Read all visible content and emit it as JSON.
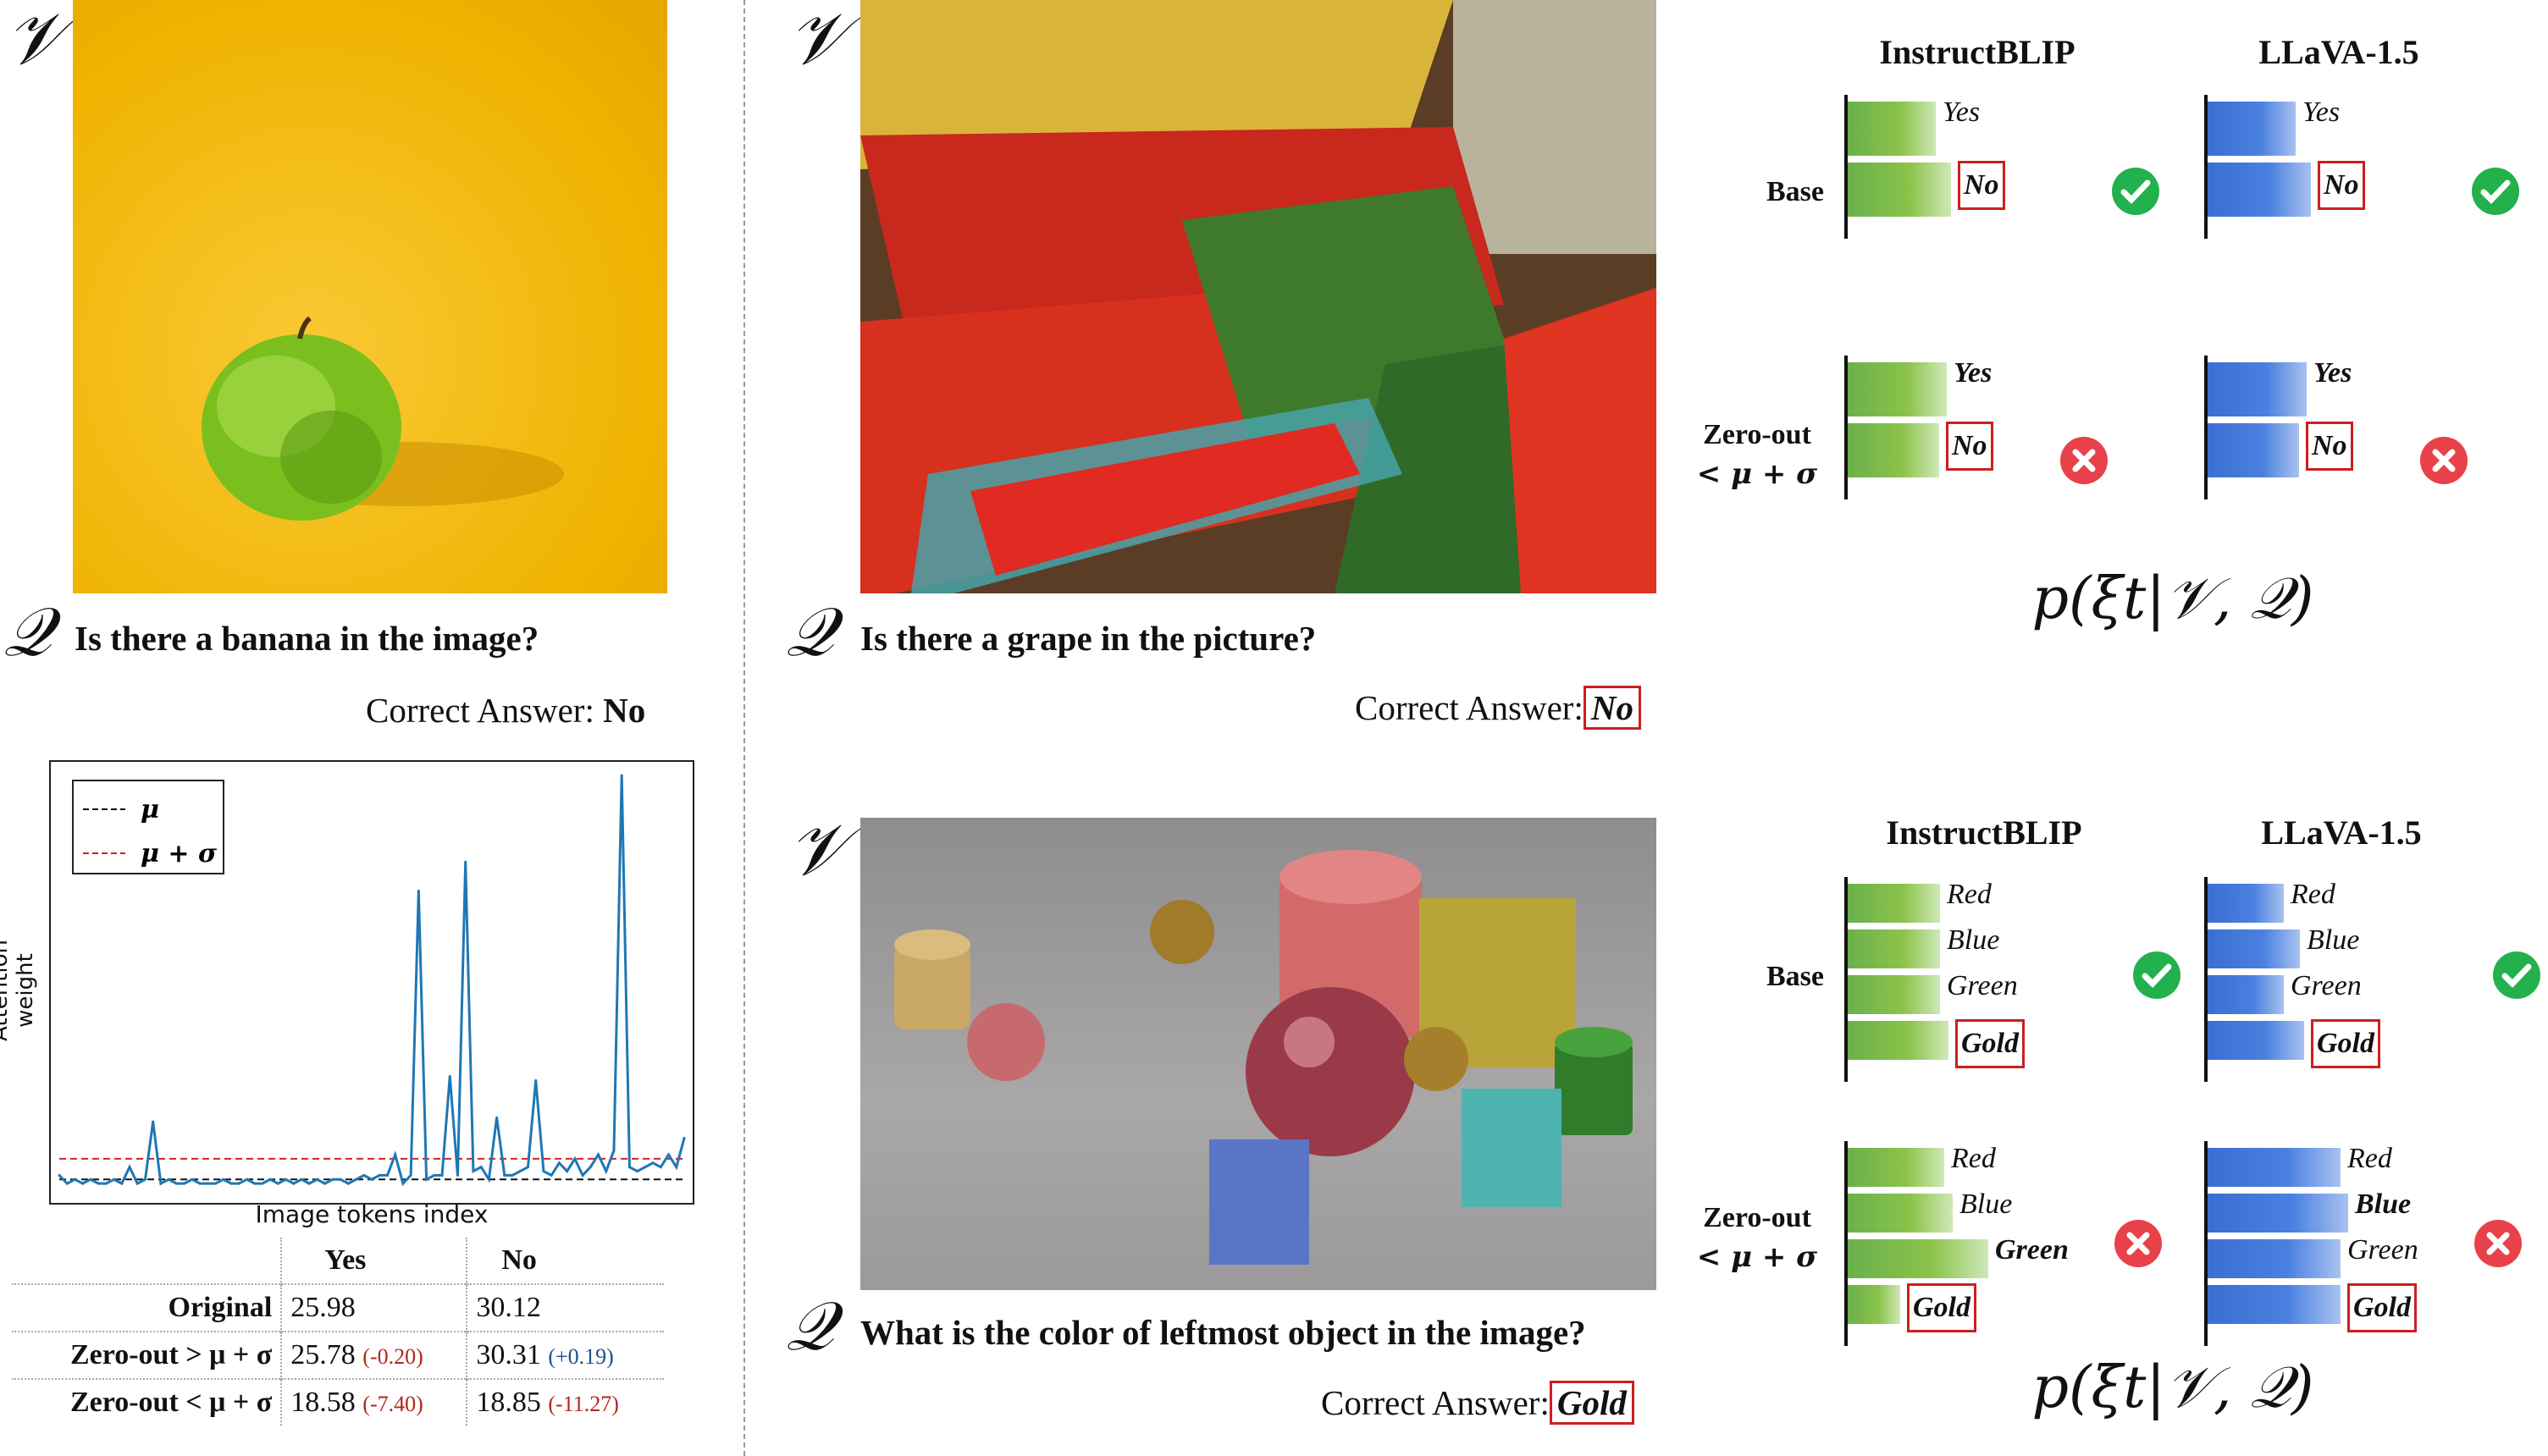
{
  "symbols": {
    "visual": "𝒱",
    "question": "𝒬"
  },
  "example1": {
    "question": "Is there a banana in the image?",
    "answer_label": "Correct Answer:",
    "answer_value": "No"
  },
  "example2": {
    "question": "Is there a grape in the picture?",
    "answer_label": "Correct Answer:",
    "answer_value": "No"
  },
  "example3": {
    "question": "What is the color of leftmost object in the image?",
    "answer_label": "Correct Answer:",
    "answer_value": "Gold"
  },
  "chart_data": {
    "type": "line",
    "xlabel": "Image tokens index",
    "ylabel": "Attention weight",
    "legend": [
      "μ",
      "μ + σ"
    ],
    "legend_placement": "top-left",
    "mu": 0.02,
    "mu_plus_sigma": 0.07,
    "ylim": [
      0,
      1
    ],
    "x": [
      0,
      5,
      10,
      15,
      20,
      25,
      30,
      35,
      40,
      45,
      50,
      55,
      60,
      65,
      70,
      75,
      80,
      85,
      90,
      95,
      100,
      105,
      110,
      115,
      120,
      125,
      130,
      135,
      140,
      145,
      150,
      155,
      160,
      165,
      170,
      175,
      180,
      185,
      190,
      195,
      200,
      205,
      210,
      215,
      220,
      225,
      230,
      235,
      240,
      245,
      250,
      255,
      260,
      265,
      270,
      275,
      280,
      285,
      290,
      295,
      300,
      305,
      310,
      315,
      320,
      325,
      330,
      335,
      340,
      345,
      350,
      355,
      360,
      365,
      370,
      375,
      380,
      385,
      390,
      395,
      400
    ],
    "values": [
      0.03,
      0.01,
      0.02,
      0.01,
      0.02,
      0.01,
      0.01,
      0.02,
      0.01,
      0.05,
      0.01,
      0.02,
      0.16,
      0.01,
      0.02,
      0.01,
      0.01,
      0.02,
      0.01,
      0.01,
      0.01,
      0.02,
      0.01,
      0.01,
      0.02,
      0.01,
      0.01,
      0.02,
      0.01,
      0.02,
      0.01,
      0.02,
      0.01,
      0.02,
      0.01,
      0.02,
      0.02,
      0.01,
      0.02,
      0.03,
      0.02,
      0.03,
      0.03,
      0.08,
      0.01,
      0.03,
      0.72,
      0.02,
      0.03,
      0.03,
      0.27,
      0.03,
      0.79,
      0.04,
      0.05,
      0.02,
      0.17,
      0.03,
      0.03,
      0.04,
      0.05,
      0.26,
      0.04,
      0.03,
      0.06,
      0.04,
      0.07,
      0.03,
      0.05,
      0.08,
      0.04,
      0.09,
      1.0,
      0.05,
      0.04,
      0.05,
      0.06,
      0.05,
      0.08,
      0.05,
      0.12
    ]
  },
  "table": {
    "headers": [
      "",
      "Yes",
      "No"
    ],
    "rows": [
      {
        "label": "Original",
        "yes": "25.98",
        "yes_delta": "",
        "no": "30.12",
        "no_delta": ""
      },
      {
        "label": "Zero-out > μ + σ",
        "yes": "25.78",
        "yes_delta": "(-0.20)",
        "no": "30.31",
        "no_delta": "(+0.19)"
      },
      {
        "label": "Zero-out < μ + σ",
        "yes": "18.58",
        "yes_delta": "(-7.40)",
        "no": "18.85",
        "no_delta": "(-11.27)"
      }
    ]
  },
  "panel_top": {
    "models": [
      "InstructBLIP",
      "LLaVA-1.5"
    ],
    "row_labels": [
      "Base",
      "Zero-out",
      "< μ + σ"
    ],
    "formula": "p(ξt|𝒱, 𝒬)",
    "base": {
      "instructblip": [
        {
          "label": "Yes",
          "value": 0.46
        },
        {
          "label": "No",
          "value": 0.54
        }
      ],
      "llava": [
        {
          "label": "Yes",
          "value": 0.46
        },
        {
          "label": "No",
          "value": 0.54
        }
      ]
    },
    "zeroout": {
      "instructblip": [
        {
          "label": "Yes",
          "value": 0.52
        },
        {
          "label": "No",
          "value": 0.48
        }
      ],
      "llava": [
        {
          "label": "Yes",
          "value": 0.52
        },
        {
          "label": "No",
          "value": 0.48
        }
      ]
    }
  },
  "panel_bottom": {
    "models": [
      "InstructBLIP",
      "LLaVA-1.5"
    ],
    "row_labels": [
      "Base",
      "Zero-out",
      "< μ + σ"
    ],
    "formula": "p(ξt|𝒱, 𝒬)",
    "base": {
      "instructblip": [
        {
          "label": "Red",
          "value": 0.23
        },
        {
          "label": "Blue",
          "value": 0.23
        },
        {
          "label": "Green",
          "value": 0.23
        },
        {
          "label": "Gold",
          "value": 0.25
        }
      ],
      "llava": [
        {
          "label": "Red",
          "value": 0.19
        },
        {
          "label": "Blue",
          "value": 0.23
        },
        {
          "label": "Green",
          "value": 0.19
        },
        {
          "label": "Gold",
          "value": 0.24
        }
      ]
    },
    "zeroout": {
      "instructblip": [
        {
          "label": "Red",
          "value": 0.24
        },
        {
          "label": "Blue",
          "value": 0.26
        },
        {
          "label": "Green",
          "value": 0.35
        },
        {
          "label": "Gold",
          "value": 0.13
        }
      ],
      "llava": [
        {
          "label": "Red",
          "value": 0.33
        },
        {
          "label": "Blue",
          "value": 0.35
        },
        {
          "label": "Green",
          "value": 0.33
        },
        {
          "label": "Gold",
          "value": 0.33
        }
      ]
    }
  }
}
